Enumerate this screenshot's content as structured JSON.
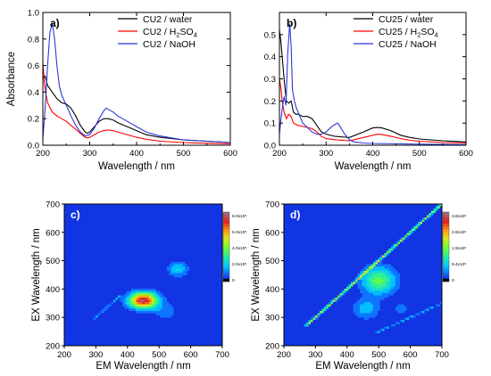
{
  "chart_data": [
    {
      "panel": "a)",
      "type": "line",
      "xlabel": "Wavelength / nm",
      "ylabel": "Absorbance",
      "xlim": [
        200,
        600
      ],
      "ylim": [
        0.0,
        1.0
      ],
      "xticks": [
        "200",
        "300",
        "400",
        "500",
        "600"
      ],
      "yticks": [
        "0.0",
        "0.2",
        "0.4",
        "0.6",
        "0.8",
        "1.0"
      ],
      "legend_position": "top-right",
      "series": [
        {
          "name": "CU2 / water",
          "legend": [
            "CU2 / water"
          ],
          "color": "#000000",
          "x": [
            200,
            205,
            210,
            220,
            230,
            240,
            250,
            260,
            270,
            280,
            290,
            295,
            300,
            310,
            320,
            330,
            340,
            350,
            360,
            380,
            400,
            420,
            450,
            500,
            550,
            600
          ],
          "y": [
            0.5,
            0.52,
            0.45,
            0.4,
            0.35,
            0.32,
            0.31,
            0.28,
            0.22,
            0.15,
            0.1,
            0.09,
            0.1,
            0.14,
            0.18,
            0.2,
            0.2,
            0.19,
            0.17,
            0.14,
            0.11,
            0.08,
            0.06,
            0.04,
            0.03,
            0.02
          ]
        },
        {
          "name": "CU2 / H2SO4",
          "legend": [
            "CU2 / H",
            "2",
            "SO",
            "4"
          ],
          "color": "#ff0000",
          "x": [
            200,
            203,
            206,
            210,
            220,
            230,
            240,
            250,
            260,
            270,
            280,
            290,
            295,
            300,
            310,
            320,
            330,
            340,
            350,
            360,
            380,
            400,
            420,
            450,
            500,
            550,
            600
          ],
          "y": [
            0.62,
            0.48,
            0.4,
            0.32,
            0.25,
            0.22,
            0.2,
            0.18,
            0.15,
            0.12,
            0.09,
            0.06,
            0.055,
            0.06,
            0.08,
            0.1,
            0.11,
            0.115,
            0.11,
            0.1,
            0.08,
            0.06,
            0.045,
            0.03,
            0.02,
            0.015,
            0.01
          ]
        },
        {
          "name": "CU2 / NaOH",
          "legend": [
            "CU2 / NaOH"
          ],
          "color": "#2d36d8",
          "x": [
            200,
            205,
            210,
            215,
            220,
            225,
            230,
            235,
            240,
            250,
            260,
            270,
            280,
            290,
            300,
            310,
            320,
            330,
            335,
            340,
            350,
            360,
            370,
            380,
            390,
            400,
            420,
            450,
            500,
            550,
            600
          ],
          "y": [
            0.05,
            0.28,
            0.6,
            0.85,
            0.92,
            0.8,
            0.6,
            0.45,
            0.38,
            0.3,
            0.22,
            0.15,
            0.1,
            0.07,
            0.08,
            0.13,
            0.2,
            0.26,
            0.28,
            0.27,
            0.25,
            0.22,
            0.2,
            0.18,
            0.16,
            0.14,
            0.1,
            0.07,
            0.04,
            0.03,
            0.02
          ]
        }
      ]
    },
    {
      "panel": "b)",
      "type": "line",
      "xlabel": "Wavelength / nm",
      "ylabel": "",
      "xlim": [
        200,
        600
      ],
      "ylim": [
        0.0,
        0.6
      ],
      "xticks": [
        "200",
        "300",
        "400",
        "500",
        "600"
      ],
      "yticks": [
        "0.0",
        "0.1",
        "0.2",
        "0.3",
        "0.4",
        "0.5"
      ],
      "legend_position": "top-right",
      "series": [
        {
          "name": "CU25 / water",
          "legend": [
            "CU25 / water"
          ],
          "color": "#000000",
          "x": [
            200,
            203,
            206,
            210,
            215,
            220,
            225,
            230,
            235,
            240,
            250,
            260,
            270,
            280,
            290,
            300,
            320,
            350,
            380,
            400,
            410,
            420,
            440,
            460,
            480,
            500,
            550,
            600
          ],
          "y": [
            0.52,
            0.47,
            0.4,
            0.3,
            0.2,
            0.19,
            0.2,
            0.15,
            0.14,
            0.14,
            0.13,
            0.13,
            0.12,
            0.09,
            0.06,
            0.05,
            0.04,
            0.035,
            0.06,
            0.078,
            0.08,
            0.078,
            0.065,
            0.045,
            0.035,
            0.028,
            0.02,
            0.015
          ]
        },
        {
          "name": "CU25 / H2SO4",
          "legend": [
            "CU25 / H",
            "2",
            "SO",
            "4"
          ],
          "color": "#ff0000",
          "x": [
            200,
            203,
            206,
            210,
            215,
            220,
            225,
            230,
            240,
            250,
            260,
            270,
            280,
            290,
            300,
            320,
            350,
            380,
            400,
            410,
            420,
            440,
            460,
            480,
            500,
            550,
            600
          ],
          "y": [
            0.3,
            0.26,
            0.2,
            0.15,
            0.12,
            0.14,
            0.13,
            0.1,
            0.09,
            0.085,
            0.08,
            0.075,
            0.06,
            0.04,
            0.03,
            0.025,
            0.02,
            0.035,
            0.045,
            0.05,
            0.048,
            0.04,
            0.03,
            0.022,
            0.018,
            0.012,
            0.01
          ]
        },
        {
          "name": "CU25 / NaOH",
          "legend": [
            "CU25 / NaOH"
          ],
          "color": "#2d36d8",
          "x": [
            200,
            205,
            210,
            214,
            218,
            222,
            225,
            228,
            232,
            236,
            240,
            250,
            260,
            270,
            280,
            290,
            300,
            310,
            320,
            325,
            330,
            340,
            350,
            360,
            380,
            400,
            500,
            600
          ],
          "y": [
            0.05,
            0.15,
            0.22,
            0.18,
            0.42,
            0.55,
            0.45,
            0.25,
            0.2,
            0.17,
            0.15,
            0.1,
            0.08,
            0.06,
            0.05,
            0.05,
            0.06,
            0.08,
            0.095,
            0.1,
            0.085,
            0.05,
            0.025,
            0.015,
            0.01,
            0.008,
            0.005,
            0.003
          ]
        }
      ]
    },
    {
      "panel": "c)",
      "type": "heatmap",
      "xlabel": "EM Wavelength / nm",
      "ylabel": "EX Wavelength / nm",
      "xlim": [
        200,
        700
      ],
      "ylim": [
        200,
        700
      ],
      "xticks": [
        "200",
        "300",
        "400",
        "500",
        "600",
        "700"
      ],
      "yticks": [
        "200",
        "300",
        "400",
        "500",
        "600",
        "700"
      ],
      "colorbar_labels": [
        "8.0x10⁵",
        "6.0x10⁵",
        "4.0x10⁵",
        "2.0x10⁵",
        "0"
      ],
      "colorbar_max": 900000,
      "peaks": [
        {
          "em": 450,
          "ex": 360,
          "intensity": 850000,
          "sx": 32,
          "sy": 20
        },
        {
          "em": 560,
          "ex": 470,
          "intensity": 240000,
          "sx": 22,
          "sy": 18
        },
        {
          "em": 520,
          "ex": 320,
          "intensity": 120000,
          "sx": 28,
          "sy": 22
        }
      ],
      "scatter_band": {
        "from": 290,
        "to": 380,
        "intensity": 170000,
        "offset": 0
      },
      "second_order_band": {
        "from": 540,
        "to": 570,
        "intensity": 80000
      }
    },
    {
      "panel": "d)",
      "type": "heatmap",
      "xlabel": "EM Wavelength / nm",
      "ylabel": "EX Wavelength / nm",
      "xlim": [
        200,
        700
      ],
      "ylim": [
        200,
        700
      ],
      "xticks": [
        "200",
        "300",
        "400",
        "500",
        "600",
        "700"
      ],
      "yticks": [
        "200",
        "300",
        "400",
        "500",
        "600",
        "700"
      ],
      "colorbar_labels": [
        "3.8x10⁶",
        "2.8x10⁶",
        "1.9x10⁶",
        "9.4x10⁵",
        "0"
      ],
      "colorbar_max": 4200000,
      "peaks": [
        {
          "em": 500,
          "ex": 430,
          "intensity": 1900000,
          "sx": 38,
          "sy": 34
        },
        {
          "em": 460,
          "ex": 330,
          "intensity": 900000,
          "sx": 30,
          "sy": 26
        },
        {
          "em": 570,
          "ex": 330,
          "intensity": 500000,
          "sx": 20,
          "sy": 18
        }
      ],
      "scatter_band": {
        "from": 270,
        "to": 700,
        "intensity": 2600000,
        "offset": 0
      },
      "second_order_band": {
        "from": 490,
        "to": 700,
        "intensity": 1100000
      }
    }
  ]
}
